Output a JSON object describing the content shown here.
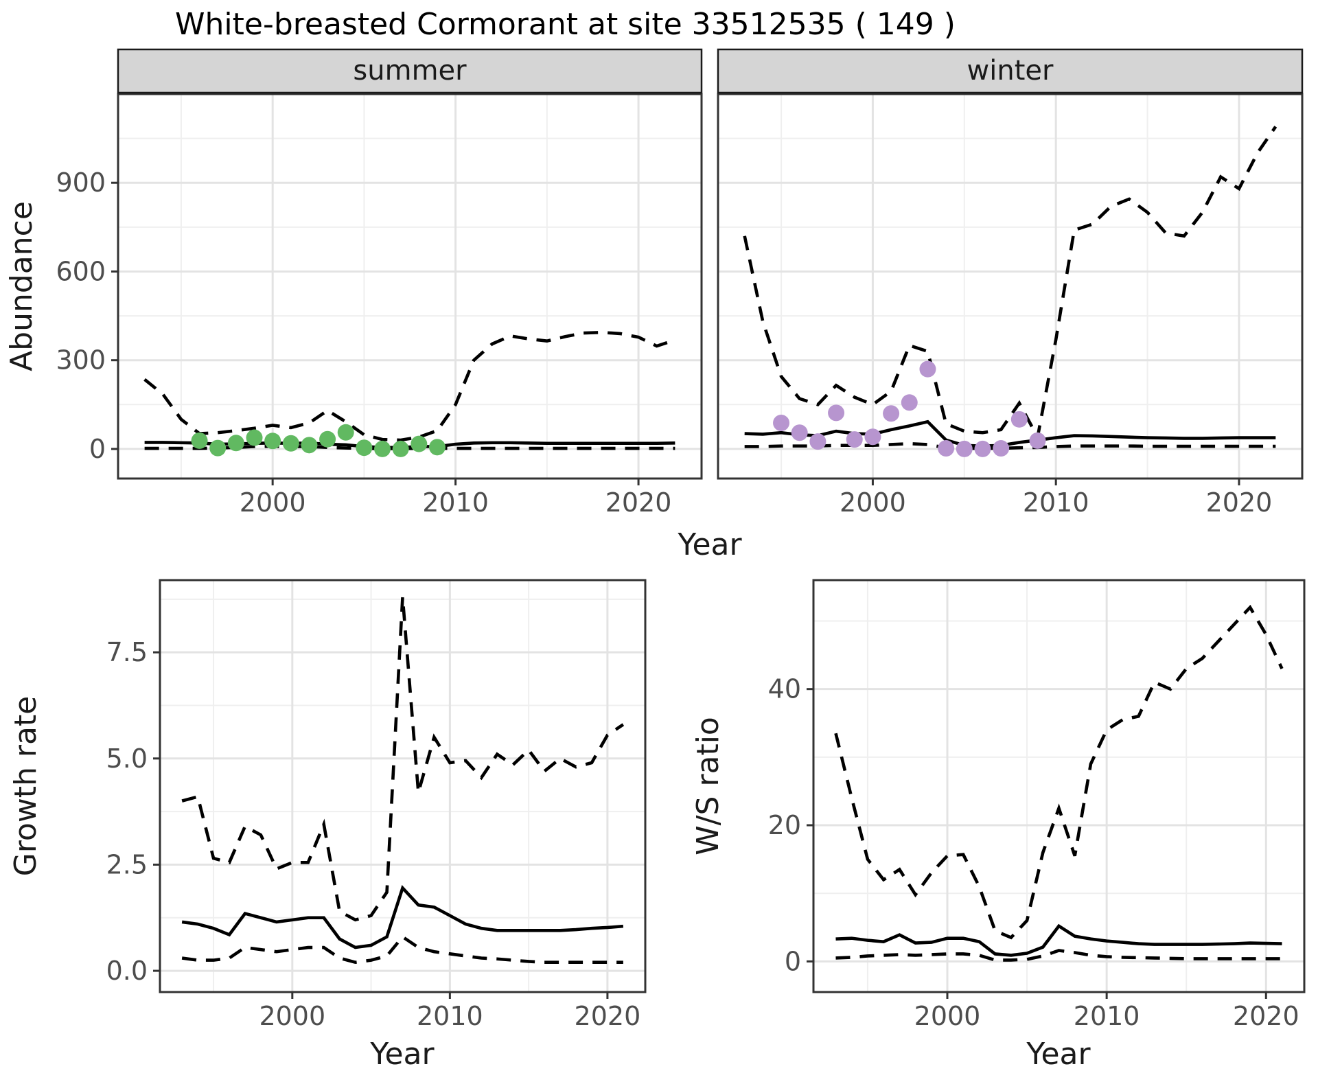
{
  "title": "White-breasted Cormorant at site 33512535 ( 149 )",
  "colors": {
    "summer_points": "#61b961",
    "winter_points": "#b795cf",
    "line": "#000000",
    "strip_fill": "#d5d5d5",
    "panel_border": "#333333",
    "grid_major": "#e3e3e3",
    "grid_minor": "#efefef",
    "tick_text": "#4d4d4d",
    "axis_title_text": "#1a1a1a"
  },
  "chart_data": [
    {
      "type": "line",
      "facet": "summer",
      "xlabel": "Year",
      "ylabel": "Abundance",
      "xlim": [
        1991.55,
        2023.45
      ],
      "ylim": [
        -100,
        1200
      ],
      "xticks": {
        "values": [
          2000,
          2010,
          2020
        ],
        "labels": [
          "2000",
          "2010",
          "2020"
        ]
      },
      "yticks": {
        "values": [
          0,
          300,
          600,
          900
        ],
        "labels": [
          "0",
          "300",
          "600",
          "900"
        ]
      },
      "x": [
        1993,
        1994,
        1995,
        1996,
        1997,
        1998,
        1999,
        2000,
        2001,
        2002,
        2003,
        2004,
        2005,
        2006,
        2007,
        2008,
        2009,
        2010,
        2011,
        2012,
        2013,
        2014,
        2015,
        2016,
        2017,
        2018,
        2019,
        2020,
        2021,
        2022
      ],
      "series": [
        {
          "name": "upper_95ci",
          "style": "dashed",
          "values": [
            235,
            185,
            100,
            52,
            55,
            62,
            70,
            80,
            72,
            88,
            130,
            92,
            48,
            32,
            30,
            40,
            62,
            150,
            300,
            355,
            382,
            372,
            365,
            380,
            392,
            394,
            390,
            378,
            348,
            368
          ]
        },
        {
          "name": "lower_95ci",
          "style": "dashed",
          "values": [
            2,
            2,
            2,
            2,
            3,
            5,
            8,
            9,
            8,
            8,
            5,
            3,
            2,
            1,
            1,
            2,
            2,
            2,
            2,
            2,
            2,
            2,
            2,
            2,
            2,
            2,
            2,
            2,
            2,
            2
          ]
        },
        {
          "name": "median",
          "style": "solid",
          "values": [
            22,
            22,
            21,
            20,
            16,
            17,
            19,
            20,
            19,
            20,
            16,
            14,
            8,
            5,
            5,
            8,
            8,
            16,
            20,
            21,
            21,
            20,
            19,
            19,
            19,
            19,
            19,
            19,
            19,
            20
          ]
        },
        {
          "name": "observed_counts",
          "style": "points",
          "color": "#61b961",
          "x": [
            1996,
            1997,
            1998,
            1999,
            2000,
            2001,
            2002,
            2003,
            2004,
            2005,
            2006,
            2007,
            2008,
            2009
          ],
          "values": [
            28,
            3,
            20,
            38,
            27,
            19,
            13,
            33,
            56,
            4,
            0,
            0,
            17,
            6
          ]
        }
      ],
      "legend": "none",
      "grid": true
    },
    {
      "type": "line",
      "facet": "winter",
      "xlabel": "Year",
      "ylabel": "Abundance",
      "xlim": [
        1991.55,
        2023.45
      ],
      "ylim": [
        -100,
        1200
      ],
      "xticks": {
        "values": [
          2000,
          2010,
          2020
        ],
        "labels": [
          "2000",
          "2010",
          "2020"
        ]
      },
      "yticks": {
        "values": [
          0,
          300,
          600,
          900
        ],
        "labels": [
          "0",
          "300",
          "600",
          "900"
        ]
      },
      "x": [
        1993,
        1994,
        1995,
        1996,
        1997,
        1998,
        1999,
        2000,
        2001,
        2002,
        2003,
        2004,
        2005,
        2006,
        2007,
        2008,
        2009,
        2010,
        2011,
        2012,
        2013,
        2014,
        2015,
        2016,
        2017,
        2018,
        2019,
        2020,
        2021,
        2022
      ],
      "series": [
        {
          "name": "upper_95ci",
          "style": "dashed",
          "values": [
            720,
            430,
            245,
            170,
            150,
            215,
            175,
            150,
            195,
            350,
            330,
            85,
            60,
            55,
            65,
            155,
            40,
            370,
            740,
            760,
            820,
            845,
            800,
            730,
            720,
            800,
            920,
            880,
            1000,
            1090
          ]
        },
        {
          "name": "lower_95ci",
          "style": "dashed",
          "values": [
            8,
            8,
            10,
            10,
            10,
            12,
            12,
            12,
            15,
            18,
            15,
            4,
            2,
            2,
            2,
            4,
            5,
            8,
            10,
            10,
            10,
            10,
            9,
            9,
            9,
            9,
            9,
            9,
            9,
            9
          ]
        },
        {
          "name": "median",
          "style": "solid",
          "values": [
            52,
            50,
            55,
            48,
            45,
            60,
            52,
            50,
            65,
            78,
            92,
            30,
            12,
            10,
            12,
            22,
            30,
            38,
            45,
            44,
            42,
            40,
            38,
            37,
            36,
            36,
            37,
            38,
            38,
            38
          ]
        },
        {
          "name": "observed_counts",
          "style": "points",
          "color": "#b795cf",
          "x": [
            1995,
            1996,
            1997,
            1998,
            1999,
            2000,
            2001,
            2002,
            2003,
            2004,
            2005,
            2006,
            2007,
            2008,
            2009
          ],
          "values": [
            88,
            55,
            25,
            122,
            32,
            41,
            120,
            157,
            270,
            2,
            0,
            0,
            2,
            100,
            28
          ]
        }
      ],
      "legend": "none",
      "grid": true
    },
    {
      "type": "line",
      "facet": null,
      "xlabel": "Year",
      "ylabel": "Growth rate",
      "xlim": [
        1991.6,
        2022.4
      ],
      "ylim": [
        -0.5,
        9.2
      ],
      "xticks": {
        "values": [
          2000,
          2010,
          2020
        ],
        "labels": [
          "2000",
          "2010",
          "2020"
        ]
      },
      "yticks": {
        "values": [
          0,
          2.5,
          5,
          7.5
        ],
        "labels": [
          "0.0",
          "2.5",
          "5.0",
          "7.5"
        ]
      },
      "x": [
        1993,
        1994,
        1995,
        1996,
        1997,
        1998,
        1999,
        2000,
        2001,
        2002,
        2003,
        2004,
        2005,
        2006,
        2007,
        2008,
        2009,
        2010,
        2011,
        2012,
        2013,
        2014,
        2015,
        2016,
        2017,
        2018,
        2019,
        2020,
        2021
      ],
      "series": [
        {
          "name": "upper_95ci",
          "style": "dashed",
          "values": [
            4.0,
            4.1,
            2.65,
            2.55,
            3.4,
            3.2,
            2.4,
            2.55,
            2.55,
            3.45,
            1.4,
            1.2,
            1.3,
            1.85,
            8.8,
            4.2,
            5.5,
            4.9,
            4.95,
            4.55,
            5.1,
            4.85,
            5.2,
            4.7,
            5.0,
            4.8,
            4.9,
            5.55,
            5.8
          ]
        },
        {
          "name": "lower_95ci",
          "style": "dashed",
          "values": [
            0.3,
            0.25,
            0.25,
            0.3,
            0.55,
            0.5,
            0.45,
            0.5,
            0.55,
            0.55,
            0.3,
            0.2,
            0.25,
            0.35,
            0.8,
            0.55,
            0.45,
            0.4,
            0.35,
            0.3,
            0.28,
            0.25,
            0.22,
            0.2,
            0.2,
            0.2,
            0.2,
            0.2,
            0.2
          ]
        },
        {
          "name": "median",
          "style": "solid",
          "values": [
            1.15,
            1.1,
            1.0,
            0.85,
            1.35,
            1.25,
            1.15,
            1.2,
            1.25,
            1.25,
            0.75,
            0.55,
            0.6,
            0.8,
            1.95,
            1.55,
            1.5,
            1.3,
            1.1,
            1.0,
            0.95,
            0.95,
            0.95,
            0.95,
            0.95,
            0.97,
            1.0,
            1.02,
            1.05
          ]
        }
      ],
      "legend": "none",
      "grid": true
    },
    {
      "type": "line",
      "facet": null,
      "xlabel": "Year",
      "ylabel": "W/S ratio",
      "xlim": [
        1991.6,
        2022.4
      ],
      "ylim": [
        -4.5,
        56
      ],
      "xticks": {
        "values": [
          2000,
          2010,
          2020
        ],
        "labels": [
          "2000",
          "2010",
          "2020"
        ]
      },
      "yticks": {
        "values": [
          0,
          20,
          40
        ],
        "labels": [
          "0",
          "20",
          "40"
        ]
      },
      "x": [
        1993,
        1994,
        1995,
        1996,
        1997,
        1998,
        1999,
        2000,
        2001,
        2002,
        2003,
        2004,
        2005,
        2006,
        2007,
        2008,
        2009,
        2010,
        2011,
        2012,
        2013,
        2014,
        2015,
        2016,
        2017,
        2018,
        2019,
        2020,
        2021
      ],
      "series": [
        {
          "name": "upper_95ci",
          "style": "dashed",
          "values": [
            33.5,
            24,
            15,
            12,
            13.5,
            9.8,
            13,
            15.5,
            15.7,
            11,
            4.5,
            3.5,
            6,
            16,
            22.5,
            15.5,
            29,
            34,
            35.5,
            36,
            41,
            40,
            43,
            44.5,
            47,
            49.5,
            52,
            48,
            43
          ]
        },
        {
          "name": "lower_95ci",
          "style": "dashed",
          "values": [
            0.5,
            0.6,
            0.8,
            0.9,
            1.0,
            0.9,
            1.0,
            1.1,
            1.1,
            0.9,
            0.2,
            0.2,
            0.3,
            0.8,
            1.6,
            1.3,
            0.9,
            0.7,
            0.6,
            0.55,
            0.5,
            0.45,
            0.4,
            0.4,
            0.4,
            0.4,
            0.4,
            0.4,
            0.4
          ]
        },
        {
          "name": "median",
          "style": "solid",
          "values": [
            3.3,
            3.4,
            3.1,
            2.9,
            3.9,
            2.7,
            2.8,
            3.4,
            3.4,
            2.9,
            1.1,
            0.9,
            1.2,
            2.1,
            5.2,
            3.7,
            3.3,
            3.0,
            2.8,
            2.6,
            2.5,
            2.5,
            2.5,
            2.5,
            2.55,
            2.6,
            2.7,
            2.65,
            2.6
          ]
        }
      ],
      "legend": "none",
      "grid": true
    }
  ]
}
